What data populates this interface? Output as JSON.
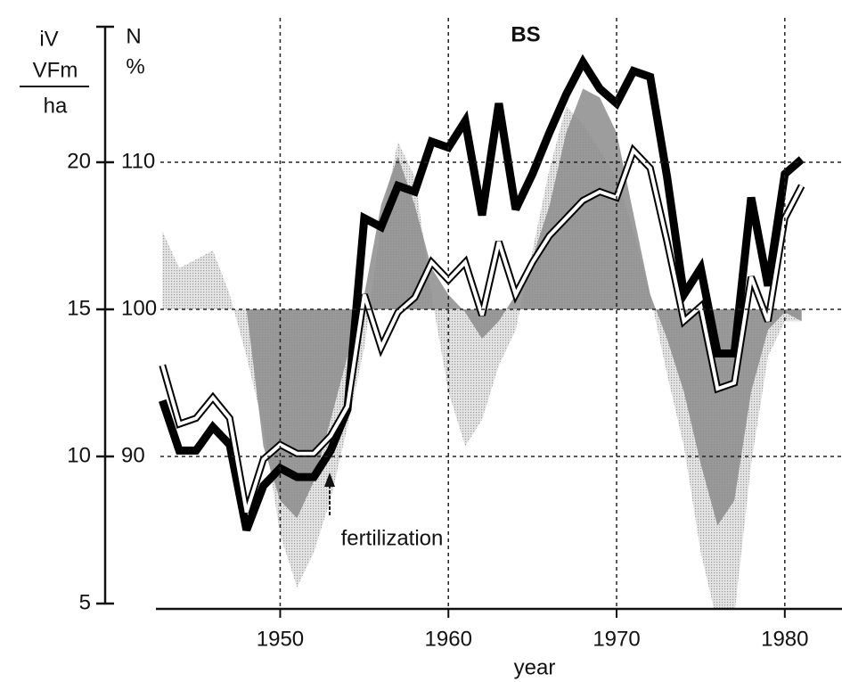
{
  "chart_data": {
    "type": "line",
    "title": "BS",
    "ylabel": [
      "iV",
      "VFm",
      "ha"
    ],
    "y2label": [
      "N",
      "%"
    ],
    "xlabel": "year",
    "annotation": "fertilization",
    "x": [
      1943,
      1944,
      1945,
      1946,
      1947,
      1948,
      1949,
      1950,
      1951,
      1952,
      1953,
      1954,
      1955,
      1956,
      1957,
      1958,
      1959,
      1960,
      1961,
      1962,
      1963,
      1964,
      1965,
      1966,
      1967,
      1968,
      1969,
      1970,
      1971,
      1972,
      1973,
      1974,
      1975,
      1976,
      1977,
      1978,
      1979,
      1980,
      1981
    ],
    "xlim": [
      1939.7,
      1983.4
    ],
    "xticks": [
      1950,
      1960,
      1970,
      1980
    ],
    "ylim": [
      5,
      25
    ],
    "yticks": [
      5,
      10,
      15,
      20
    ],
    "y2lim": [
      80,
      120
    ],
    "y2ticks": [
      90,
      100,
      110
    ],
    "grid": true,
    "series": [
      {
        "type": "area",
        "axis": "y2",
        "color": "#c4c4c4",
        "values": [
          105.3,
          102.8,
          103.4,
          104,
          101,
          96.8,
          92,
          84.7,
          81.1,
          83.5,
          87.1,
          92,
          97.4,
          105.9,
          111.4,
          109,
          101,
          94.4,
          90.7,
          92.5,
          96.2,
          98.6,
          104,
          109.5,
          113.8,
          112.6,
          110.8,
          109,
          105.3,
          101,
          95.6,
          90.7,
          83.5,
          78.6,
          79.2,
          89.5,
          96.8,
          99.2,
          99.2
        ]
      },
      {
        "type": "area",
        "axis": "y2",
        "color": "#8c8c8c",
        "values": [
          100,
          100,
          100,
          100,
          100,
          100,
          90.7,
          87,
          85.8,
          88.3,
          92.5,
          96.8,
          101,
          107.1,
          110.4,
          107.1,
          102.8,
          101,
          99.8,
          98,
          99.2,
          101,
          103.5,
          107,
          112,
          115,
          114.4,
          112,
          106.5,
          101,
          98,
          94.4,
          89.5,
          85.3,
          87,
          94.4,
          98.6,
          99.8,
          99.2
        ]
      },
      {
        "type": "line",
        "color": "#000000",
        "values": [
          11.9,
          10.2,
          10.2,
          11.0,
          10.4,
          7.5,
          9.0,
          9.6,
          9.3,
          9.3,
          10.2,
          11.6,
          18.1,
          17.8,
          19.2,
          19.0,
          20.7,
          20.5,
          21.4,
          18.2,
          22.0,
          18.4,
          19.6,
          21.0,
          22.3,
          23.4,
          22.5,
          22.0,
          23.1,
          22.9,
          19.5,
          15.5,
          16.4,
          13.5,
          13.5,
          18.8,
          15.8,
          19.6,
          20.1
        ]
      },
      {
        "type": "double",
        "color": "#ffffff",
        "values": [
          13.1,
          11.1,
          11.3,
          12.0,
          11.3,
          8.1,
          9.9,
          10.4,
          10.1,
          10.1,
          10.7,
          11.7,
          15.5,
          13.7,
          14.9,
          15.4,
          16.6,
          16.0,
          16.6,
          14.8,
          17.3,
          15.5,
          16.6,
          17.5,
          18.1,
          18.7,
          19.0,
          18.8,
          20.4,
          19.8,
          17.3,
          14.6,
          15.1,
          12.3,
          12.5,
          16.1,
          14.6,
          18.1,
          19.2
        ]
      }
    ]
  }
}
